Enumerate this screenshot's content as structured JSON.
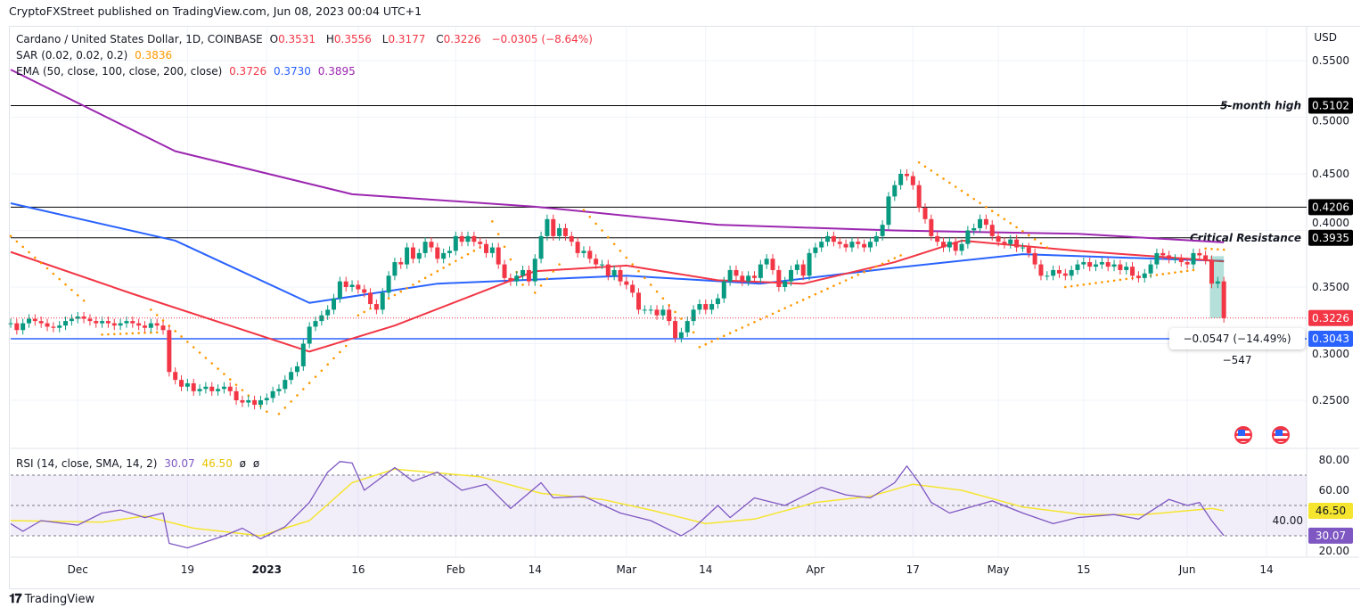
{
  "publisher_line": "CryptoFXStreet published on TradingView.com, Jun 08, 2023 00:04 UTC+1",
  "legend": {
    "symbol": "Cardano / United States Dollar, 1D, COINBASE",
    "o_label": "O",
    "o": "0.3531",
    "h_label": "H",
    "h": "0.3556",
    "l_label": "L",
    "l": "0.3177",
    "c_label": "C",
    "c": "0.3226",
    "change": "−0.0305 (−8.64%)",
    "sar_label": "SAR (0.02, 0.02, 0.2)",
    "sar_value": "0.3836",
    "ema_label": "EMA (50, close, 100, close, 200, close)",
    "ema50": "0.3726",
    "ema100": "0.3730",
    "ema200": "0.3895",
    "rsi_label": "RSI (14, close, SMA, 14, 2)",
    "rsi_value": "30.07",
    "rsi_sma": "46.50",
    "rsi_extra1": "ø",
    "rsi_extra2": "ø"
  },
  "colors": {
    "up": "#089981",
    "down": "#f23645",
    "ema50": "#f23645",
    "ema100": "#2962ff",
    "ema200": "#9c27b0",
    "sar": "#ff9800",
    "rsi": "#7e57c2",
    "rsi_sma": "#f5e52f",
    "support": "#2962ff"
  },
  "icons": [
    "us-flag-event-icon",
    "us-flag-event-icon",
    "tradingview-logo-icon"
  ],
  "footer_brand": "TradingView",
  "measure_label": "−0.0547 (−14.49%) −547",
  "chart_data": [
    {
      "type": "candlestick",
      "currency": "USD",
      "y_ticks": [
        "0.5500",
        "0.5000",
        "0.4500",
        "0.4000",
        "0.3500",
        "0.3000",
        "0.2500"
      ],
      "y_range": [
        0.225,
        0.57
      ],
      "x_ticks": [
        "Dec",
        "19",
        "2023",
        "16",
        "Feb",
        "14",
        "Mar",
        "14",
        "Apr",
        "17",
        "May",
        "15",
        "Jun",
        "14"
      ],
      "x_tick_dates": [
        "2022-12-01",
        "2022-12-19",
        "2023-01-01",
        "2023-01-16",
        "2023-02-01",
        "2023-02-14",
        "2023-03-01",
        "2023-03-14",
        "2023-04-01",
        "2023-04-17",
        "2023-05-01",
        "2023-05-15",
        "2023-06-01",
        "2023-06-14"
      ],
      "start_date": "2022-11-20",
      "closes": [
        0.318,
        0.312,
        0.318,
        0.322,
        0.32,
        0.318,
        0.315,
        0.314,
        0.316,
        0.32,
        0.322,
        0.324,
        0.322,
        0.32,
        0.318,
        0.32,
        0.318,
        0.316,
        0.318,
        0.32,
        0.318,
        0.316,
        0.314,
        0.318,
        0.316,
        0.312,
        0.275,
        0.268,
        0.262,
        0.265,
        0.258,
        0.26,
        0.262,
        0.258,
        0.26,
        0.262,
        0.258,
        0.25,
        0.248,
        0.25,
        0.246,
        0.25,
        0.252,
        0.258,
        0.26,
        0.268,
        0.275,
        0.28,
        0.3,
        0.315,
        0.32,
        0.325,
        0.33,
        0.34,
        0.355,
        0.35,
        0.352,
        0.348,
        0.345,
        0.335,
        0.33,
        0.345,
        0.36,
        0.372,
        0.37,
        0.385,
        0.375,
        0.38,
        0.39,
        0.385,
        0.375,
        0.38,
        0.382,
        0.395,
        0.39,
        0.395,
        0.39,
        0.388,
        0.38,
        0.385,
        0.37,
        0.358,
        0.355,
        0.36,
        0.365,
        0.355,
        0.375,
        0.395,
        0.41,
        0.395,
        0.402,
        0.395,
        0.39,
        0.38,
        0.382,
        0.375,
        0.37,
        0.37,
        0.36,
        0.365,
        0.355,
        0.352,
        0.345,
        0.33,
        0.33,
        0.33,
        0.325,
        0.33,
        0.32,
        0.305,
        0.31,
        0.32,
        0.33,
        0.335,
        0.33,
        0.335,
        0.34,
        0.355,
        0.365,
        0.36,
        0.355,
        0.36,
        0.358,
        0.37,
        0.375,
        0.365,
        0.35,
        0.355,
        0.365,
        0.37,
        0.36,
        0.38,
        0.385,
        0.39,
        0.395,
        0.39,
        0.388,
        0.385,
        0.39,
        0.388,
        0.385,
        0.39,
        0.395,
        0.405,
        0.43,
        0.44,
        0.45,
        0.448,
        0.44,
        0.42,
        0.41,
        0.395,
        0.39,
        0.385,
        0.39,
        0.382,
        0.388,
        0.4,
        0.402,
        0.41,
        0.405,
        0.395,
        0.39,
        0.388,
        0.392,
        0.385,
        0.385,
        0.38,
        0.37,
        0.36,
        0.36,
        0.365,
        0.362,
        0.36,
        0.365,
        0.37,
        0.372,
        0.368,
        0.37,
        0.372,
        0.368,
        0.37,
        0.365,
        0.368,
        0.36,
        0.358,
        0.362,
        0.37,
        0.38,
        0.378,
        0.375,
        0.375,
        0.372,
        0.37,
        0.38,
        0.378,
        0.374,
        0.353,
        0.355,
        0.3226
      ],
      "ema200": [
        [
          "2022-11-20",
          0.542
        ],
        [
          "2022-12-17",
          0.47
        ],
        [
          "2023-01-15",
          0.432
        ],
        [
          "2023-02-14",
          0.421
        ],
        [
          "2023-03-16",
          0.405
        ],
        [
          "2023-04-14",
          0.4
        ],
        [
          "2023-05-14",
          0.397
        ],
        [
          "2023-06-07",
          0.3895
        ]
      ],
      "ema100": [
        [
          "2022-11-20",
          0.424
        ],
        [
          "2022-12-17",
          0.391
        ],
        [
          "2023-01-08",
          0.336
        ],
        [
          "2023-01-29",
          0.353
        ],
        [
          "2023-03-01",
          0.36
        ],
        [
          "2023-03-23",
          0.353
        ],
        [
          "2023-04-14",
          0.367
        ],
        [
          "2023-05-05",
          0.379
        ],
        [
          "2023-06-07",
          0.373
        ]
      ],
      "ema50": [
        [
          "2022-11-20",
          0.381
        ],
        [
          "2022-12-10",
          0.344
        ],
        [
          "2023-01-08",
          0.293
        ],
        [
          "2023-01-22",
          0.316
        ],
        [
          "2023-02-14",
          0.364
        ],
        [
          "2023-03-01",
          0.369
        ],
        [
          "2023-03-16",
          0.356
        ],
        [
          "2023-03-30",
          0.353
        ],
        [
          "2023-04-14",
          0.372
        ],
        [
          "2023-04-25",
          0.391
        ],
        [
          "2023-05-14",
          0.382
        ],
        [
          "2023-06-07",
          0.3726
        ]
      ],
      "sar_segments": [
        [
          [
            "2022-11-20",
            0.395
          ],
          [
            "2022-12-02",
            0.338
          ]
        ],
        [
          [
            "2022-12-05",
            0.308
          ],
          [
            "2022-12-14",
            0.31
          ]
        ],
        [
          [
            "2022-12-13",
            0.33
          ],
          [
            "2023-01-01",
            0.24
          ]
        ],
        [
          [
            "2023-01-03",
            0.238
          ],
          [
            "2023-01-14",
            0.298
          ]
        ],
        [
          [
            "2023-01-16",
            0.325
          ],
          [
            "2023-02-05",
            0.385
          ]
        ],
        [
          [
            "2023-02-07",
            0.408
          ],
          [
            "2023-02-12",
            0.352
          ]
        ],
        [
          [
            "2023-02-14",
            0.345
          ],
          [
            "2023-02-18",
            0.37
          ]
        ],
        [
          [
            "2023-02-22",
            0.418
          ],
          [
            "2023-03-12",
            0.31
          ]
        ],
        [
          [
            "2023-03-13",
            0.297
          ],
          [
            "2023-04-15",
            0.378
          ]
        ],
        [
          [
            "2023-04-18",
            0.46
          ],
          [
            "2023-05-09",
            0.385
          ]
        ],
        [
          [
            "2023-05-12",
            0.35
          ],
          [
            "2023-06-02",
            0.365
          ]
        ],
        [
          [
            "2023-06-04",
            0.384
          ],
          [
            "2023-06-07",
            0.383
          ]
        ]
      ],
      "horizontal_levels": [
        {
          "value": 0.5102,
          "label": "5-month high",
          "tag": "0.5102",
          "color": "#000000"
        },
        {
          "value": 0.4206,
          "label": "",
          "tag": "0.4206",
          "color": "#000000"
        },
        {
          "value": 0.3935,
          "label": "Critical Resistance",
          "tag": "0.3935",
          "color": "#000000"
        },
        {
          "value": 0.3043,
          "label": "",
          "tag": "0.3043",
          "color": "#2962ff"
        }
      ],
      "last_price": {
        "value": 0.3226,
        "tag": "0.3226"
      },
      "measure": {
        "from": 0.3773,
        "to": 0.3226,
        "dates": [
          "2023-06-05",
          "2023-06-07"
        ]
      }
    },
    {
      "type": "line",
      "title": "RSI (14, close, SMA, 14, 2)",
      "y_ticks": [
        "80.00",
        "60.00",
        "40.00",
        "20.00"
      ],
      "y_range": [
        15,
        82
      ],
      "bands": [
        70,
        50,
        30
      ],
      "series": [
        {
          "name": "RSI",
          "points": [
            [
              "2022-11-20",
              38
            ],
            [
              "2022-11-22",
              33
            ],
            [
              "2022-11-25",
              40
            ],
            [
              "2022-12-01",
              37
            ],
            [
              "2022-12-05",
              45
            ],
            [
              "2022-12-08",
              47
            ],
            [
              "2022-12-12",
              42
            ],
            [
              "2022-12-15",
              45
            ],
            [
              "2022-12-16",
              25
            ],
            [
              "2022-12-19",
              22
            ],
            [
              "2022-12-25",
              30
            ],
            [
              "2022-12-28",
              35
            ],
            [
              "2022-12-31",
              28
            ],
            [
              "2023-01-04",
              36
            ],
            [
              "2023-01-08",
              52
            ],
            [
              "2023-01-11",
              72
            ],
            [
              "2023-01-13",
              79
            ],
            [
              "2023-01-15",
              78
            ],
            [
              "2023-01-17",
              60
            ],
            [
              "2023-01-22",
              75
            ],
            [
              "2023-01-25",
              66
            ],
            [
              "2023-01-29",
              72
            ],
            [
              "2023-02-02",
              60
            ],
            [
              "2023-02-06",
              64
            ],
            [
              "2023-02-10",
              48
            ],
            [
              "2023-02-15",
              65
            ],
            [
              "2023-02-17",
              55
            ],
            [
              "2023-02-22",
              56
            ],
            [
              "2023-02-28",
              45
            ],
            [
              "2023-03-05",
              40
            ],
            [
              "2023-03-10",
              30
            ],
            [
              "2023-03-12",
              35
            ],
            [
              "2023-03-16",
              50
            ],
            [
              "2023-03-18",
              42
            ],
            [
              "2023-03-22",
              55
            ],
            [
              "2023-03-27",
              50
            ],
            [
              "2023-04-02",
              62
            ],
            [
              "2023-04-06",
              57
            ],
            [
              "2023-04-10",
              55
            ],
            [
              "2023-04-14",
              65
            ],
            [
              "2023-04-16",
              76
            ],
            [
              "2023-04-18",
              65
            ],
            [
              "2023-04-20",
              52
            ],
            [
              "2023-04-23",
              45
            ],
            [
              "2023-04-30",
              53
            ],
            [
              "2023-05-05",
              45
            ],
            [
              "2023-05-10",
              38
            ],
            [
              "2023-05-14",
              42
            ],
            [
              "2023-05-20",
              44
            ],
            [
              "2023-05-24",
              41
            ],
            [
              "2023-05-29",
              54
            ],
            [
              "2023-06-01",
              50
            ],
            [
              "2023-06-03",
              52
            ],
            [
              "2023-06-05",
              40
            ],
            [
              "2023-06-07",
              30.07
            ]
          ]
        },
        {
          "name": "SMA",
          "points": [
            [
              "2022-11-20",
              40
            ],
            [
              "2022-12-05",
              39
            ],
            [
              "2022-12-12",
              43
            ],
            [
              "2022-12-20",
              35
            ],
            [
              "2022-12-31",
              30
            ],
            [
              "2023-01-08",
              40
            ],
            [
              "2023-01-15",
              65
            ],
            [
              "2023-01-22",
              74
            ],
            [
              "2023-02-05",
              69
            ],
            [
              "2023-02-15",
              58
            ],
            [
              "2023-02-25",
              54
            ],
            [
              "2023-03-05",
              47
            ],
            [
              "2023-03-14",
              38
            ],
            [
              "2023-03-22",
              41
            ],
            [
              "2023-04-01",
              52
            ],
            [
              "2023-04-10",
              56
            ],
            [
              "2023-04-17",
              64
            ],
            [
              "2023-04-25",
              60
            ],
            [
              "2023-05-05",
              49
            ],
            [
              "2023-05-15",
              44
            ],
            [
              "2023-05-25",
              44
            ],
            [
              "2023-06-05",
              48
            ],
            [
              "2023-06-07",
              46.5
            ]
          ]
        }
      ],
      "value_tags": [
        "46.50",
        "30.07"
      ]
    }
  ]
}
